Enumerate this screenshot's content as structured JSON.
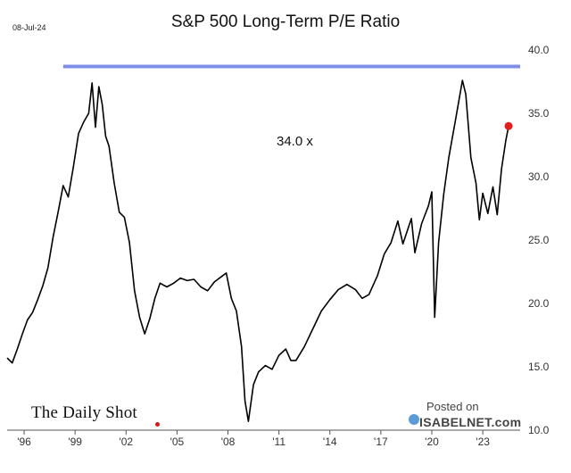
{
  "header": {
    "date": "08-Jul-24",
    "title": "S&P 500 Long-Term P/E Ratio"
  },
  "annotation": "34.0 x",
  "branding": {
    "logo_text": "The Daily Shot",
    "watermark_posted": "Posted on",
    "watermark_site": "ISABELNET.com"
  },
  "colors": {
    "line": "#000000",
    "reference_line": "#7f8fe8",
    "last_point": "#e02020",
    "axis_text": "#333333"
  },
  "chart_data": {
    "type": "line",
    "title": "S&P 500 Long-Term P/E Ratio",
    "xlabel": "",
    "ylabel": "",
    "xlim": [
      1995.0,
      2025.2
    ],
    "ylim": [
      10,
      40
    ],
    "yticks": [
      10.0,
      15.0,
      20.0,
      25.0,
      30.0,
      35.0,
      40.0
    ],
    "ytick_labels": [
      "10.0",
      "15.0",
      "20.0",
      "25.0",
      "30.0",
      "35.0",
      "40.0"
    ],
    "xticks": [
      1996,
      1999,
      2002,
      2005,
      2008,
      2011,
      2014,
      2017,
      2020,
      2023
    ],
    "xtick_labels": [
      "'96",
      "'99",
      "'02",
      "'05",
      "'08",
      "'11",
      "'14",
      "'17",
      "'20",
      "'23"
    ],
    "y_axis_side": "right",
    "grid": false,
    "legend": "none",
    "reference_line": {
      "y": 38.7,
      "x_start": 1998.3,
      "x_end": 2025.2
    },
    "last_value": {
      "x": 2024.52,
      "y": 34.0,
      "label": "34.0 x"
    },
    "series": [
      {
        "points": [
          [
            1995.0,
            15.7
          ],
          [
            1995.3,
            15.3
          ],
          [
            1995.6,
            16.4
          ],
          [
            1995.9,
            17.6
          ],
          [
            1996.2,
            18.7
          ],
          [
            1996.5,
            19.3
          ],
          [
            1996.8,
            20.3
          ],
          [
            1997.1,
            21.4
          ],
          [
            1997.4,
            22.8
          ],
          [
            1997.7,
            25.2
          ],
          [
            1998.0,
            27.2
          ],
          [
            1998.3,
            29.3
          ],
          [
            1998.6,
            28.4
          ],
          [
            1998.9,
            30.8
          ],
          [
            1999.2,
            33.4
          ],
          [
            1999.5,
            34.3
          ],
          [
            1999.8,
            35.0
          ],
          [
            2000.0,
            37.4
          ],
          [
            2000.2,
            33.9
          ],
          [
            2000.4,
            37.1
          ],
          [
            2000.6,
            35.7
          ],
          [
            2000.8,
            33.2
          ],
          [
            2001.0,
            32.4
          ],
          [
            2001.3,
            29.5
          ],
          [
            2001.6,
            27.2
          ],
          [
            2001.9,
            26.8
          ],
          [
            2002.2,
            24.8
          ],
          [
            2002.5,
            21.0
          ],
          [
            2002.8,
            18.9
          ],
          [
            2003.1,
            17.6
          ],
          [
            2003.4,
            18.8
          ],
          [
            2003.7,
            20.4
          ],
          [
            2004.0,
            21.6
          ],
          [
            2004.4,
            21.3
          ],
          [
            2004.8,
            21.6
          ],
          [
            2005.2,
            22.0
          ],
          [
            2005.6,
            21.8
          ],
          [
            2006.0,
            21.9
          ],
          [
            2006.4,
            21.3
          ],
          [
            2006.8,
            21.0
          ],
          [
            2007.2,
            21.7
          ],
          [
            2007.6,
            22.1
          ],
          [
            2007.9,
            22.4
          ],
          [
            2008.2,
            20.4
          ],
          [
            2008.5,
            19.4
          ],
          [
            2008.8,
            16.6
          ],
          [
            2009.0,
            12.3
          ],
          [
            2009.2,
            10.7
          ],
          [
            2009.5,
            13.6
          ],
          [
            2009.8,
            14.6
          ],
          [
            2010.2,
            15.1
          ],
          [
            2010.6,
            14.8
          ],
          [
            2011.0,
            15.9
          ],
          [
            2011.4,
            16.4
          ],
          [
            2011.7,
            15.5
          ],
          [
            2012.0,
            15.5
          ],
          [
            2012.5,
            16.6
          ],
          [
            2013.0,
            18.0
          ],
          [
            2013.5,
            19.4
          ],
          [
            2014.0,
            20.3
          ],
          [
            2014.5,
            21.1
          ],
          [
            2015.0,
            21.5
          ],
          [
            2015.5,
            21.1
          ],
          [
            2015.9,
            20.4
          ],
          [
            2016.3,
            20.7
          ],
          [
            2016.8,
            22.2
          ],
          [
            2017.2,
            23.9
          ],
          [
            2017.6,
            24.8
          ],
          [
            2018.0,
            26.5
          ],
          [
            2018.3,
            24.7
          ],
          [
            2018.8,
            26.7
          ],
          [
            2019.0,
            24.0
          ],
          [
            2019.4,
            26.3
          ],
          [
            2019.8,
            27.7
          ],
          [
            2020.0,
            28.8
          ],
          [
            2020.17,
            18.9
          ],
          [
            2020.4,
            24.8
          ],
          [
            2020.7,
            28.6
          ],
          [
            2021.0,
            31.5
          ],
          [
            2021.4,
            34.5
          ],
          [
            2021.8,
            37.6
          ],
          [
            2022.0,
            36.5
          ],
          [
            2022.3,
            31.5
          ],
          [
            2022.6,
            29.5
          ],
          [
            2022.8,
            26.6
          ],
          [
            2023.0,
            28.7
          ],
          [
            2023.3,
            27.1
          ],
          [
            2023.6,
            29.2
          ],
          [
            2023.85,
            27.0
          ],
          [
            2024.1,
            30.6
          ],
          [
            2024.35,
            32.8
          ],
          [
            2024.52,
            34.0
          ]
        ]
      }
    ]
  }
}
